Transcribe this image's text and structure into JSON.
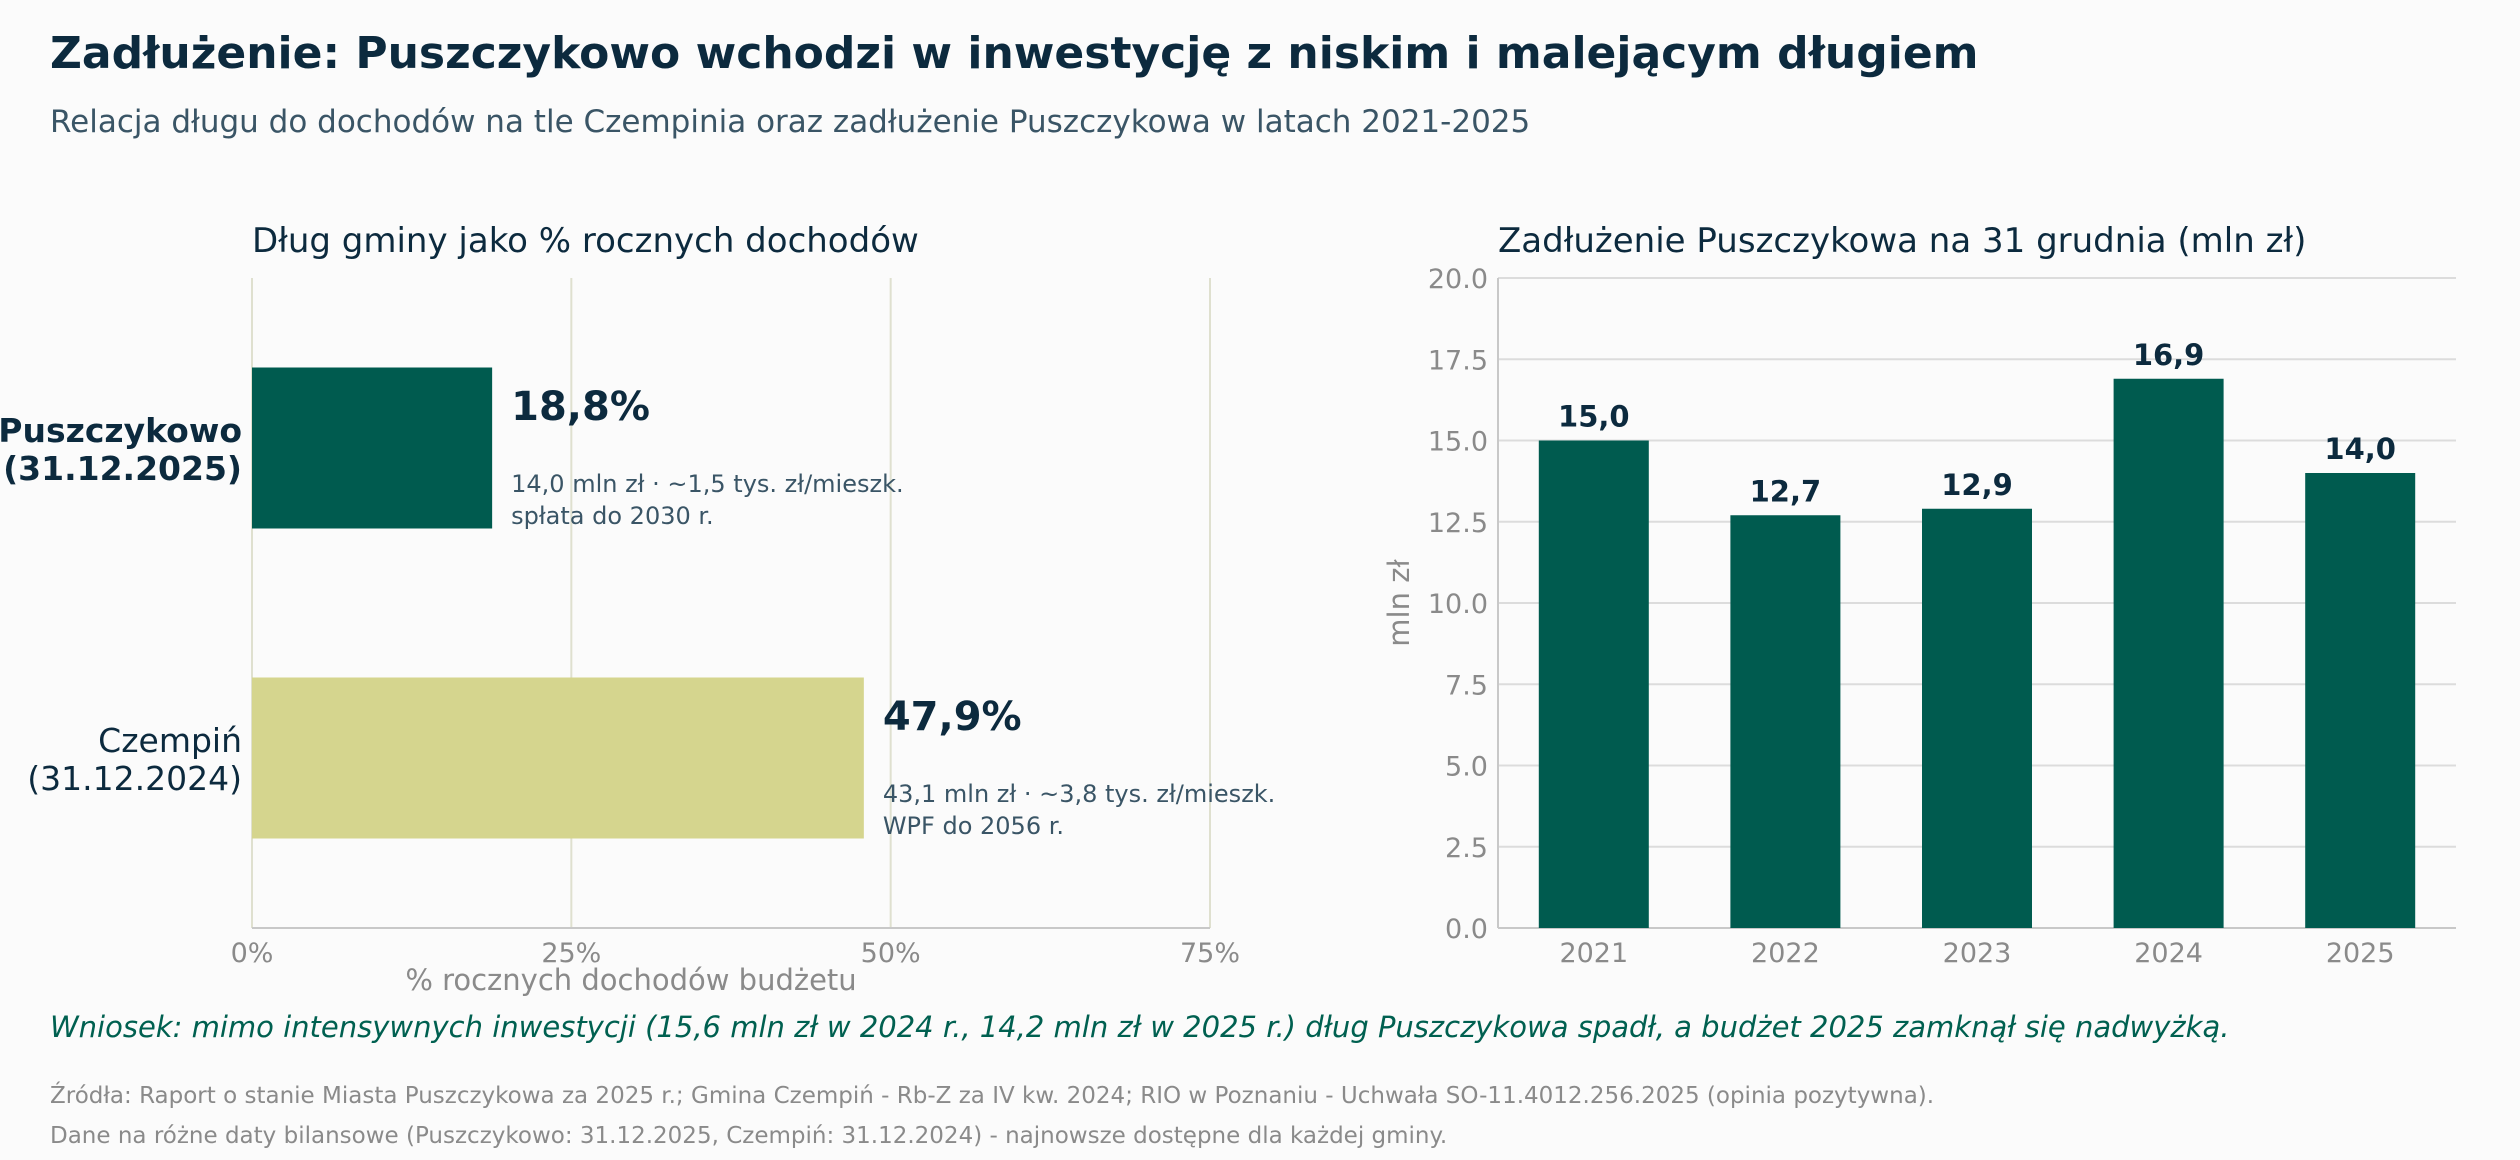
{
  "header": {
    "title": "Zadłużenie: Puszczykowo wchodzi w inwestycję z niskim i malejącym długiem",
    "subtitle": "Relacja długu do dochodów na tle Czempinia oraz zadłużenie Puszczykowa w latach 2021-2025"
  },
  "colors": {
    "dark_green": "#005b4f",
    "khaki": "#d5d58e",
    "text_dark": "#0c2a3e",
    "text_mid": "#3a5566",
    "text_grey": "#8a8a8a"
  },
  "chart_data": [
    {
      "type": "bar",
      "orientation": "horizontal",
      "title": "Dług gminy jako % rocznych dochodów",
      "xlabel": "% rocznych dochodów budżetu",
      "ylabel": "",
      "xlim": [
        0,
        75
      ],
      "xticks": [
        0,
        25,
        50,
        75
      ],
      "xtick_labels": [
        "0%",
        "25%",
        "50%",
        "75%"
      ],
      "grid": "vertical",
      "categories": [
        {
          "line1": "Puszczykowo",
          "line2": "(31.12.2025)",
          "bold": true
        },
        {
          "line1": "Czempiń",
          "line2": "(31.12.2024)",
          "bold": false
        }
      ],
      "values": [
        18.8,
        47.9
      ],
      "value_labels": [
        "18,8%",
        "47,9%"
      ],
      "notes": [
        [
          "14,0 mln zł · ~1,5 tys. zł/mieszk.",
          "spłata do 2030 r."
        ],
        [
          "43,1 mln zł · ~3,8 tys. zł/mieszk.",
          "WPF do 2056 r."
        ]
      ],
      "bar_colors": [
        "#005b4f",
        "#d5d58e"
      ]
    },
    {
      "type": "bar",
      "title": "Zadłużenie Puszczykowa na 31 grudnia (mln zł)",
      "xlabel": "",
      "ylabel": "mln zł",
      "ylim": [
        0,
        20
      ],
      "yticks": [
        0,
        2.5,
        5,
        7.5,
        10,
        12.5,
        15,
        17.5,
        20
      ],
      "ytick_labels": [
        "0.0",
        "2.5",
        "5.0",
        "7.5",
        "10.0",
        "12.5",
        "15.0",
        "17.5",
        "20.0"
      ],
      "grid": "horizontal",
      "categories": [
        "2021",
        "2022",
        "2023",
        "2024",
        "2025"
      ],
      "values": [
        15.0,
        12.7,
        12.9,
        16.9,
        14.0
      ],
      "value_labels": [
        "15,0",
        "12,7",
        "12,9",
        "16,9",
        "14,0"
      ],
      "bar_color": "#005b4f"
    }
  ],
  "footer": {
    "conclusion": "Wniosek: mimo intensywnych inwestycji (15,6 mln zł w 2024 r., 14,2 mln zł w 2025 r.) dług Puszczykowa spadł, a budżet 2025 zamknął się nadwyżką.",
    "source_line1": "Źródła: Raport o stanie Miasta Puszczykowa za 2025 r.; Gmina Czempiń - Rb-Z za IV kw. 2024; RIO w Poznaniu - Uchwała SO-11.4012.256.2025 (opinia pozytywna).",
    "source_line2": "Dane na różne daty bilansowe (Puszczykowo: 31.12.2025, Czempiń: 31.12.2024) - najnowsze dostępne dla każdej gminy."
  }
}
